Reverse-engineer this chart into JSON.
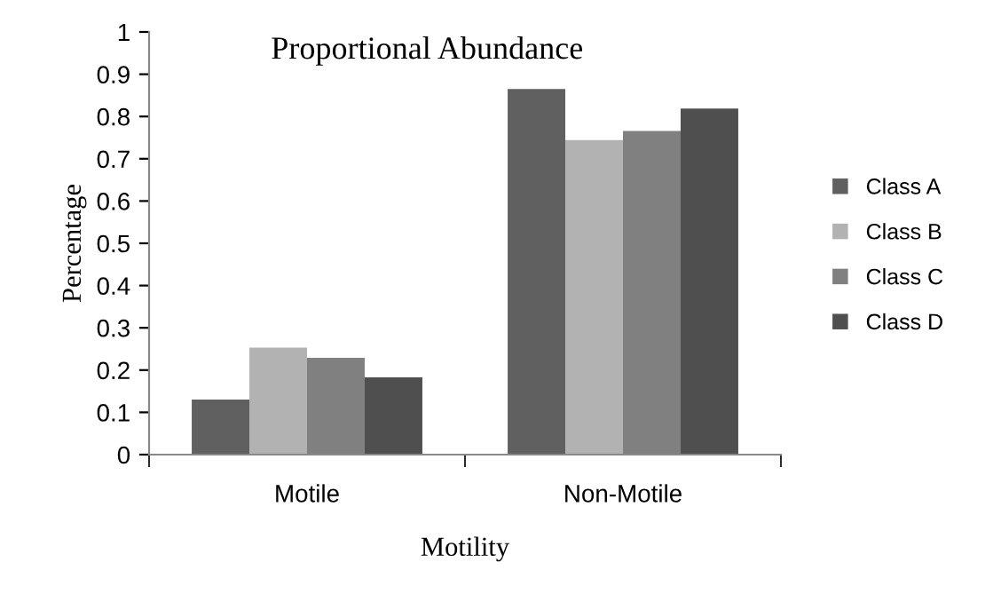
{
  "chart_data": {
    "type": "bar",
    "title": "Proportional Abundance",
    "xlabel": "Motility",
    "ylabel": "Percentage",
    "categories": [
      "Motile",
      "Non-Motile"
    ],
    "series": [
      {
        "name": "Class A",
        "color": "#606060",
        "values": [
          0.13,
          0.865
        ]
      },
      {
        "name": "Class B",
        "color": "#b2b2b2",
        "values": [
          0.253,
          0.744
        ]
      },
      {
        "name": "Class C",
        "color": "#808080",
        "values": [
          0.229,
          0.766
        ]
      },
      {
        "name": "Class D",
        "color": "#4f4f4f",
        "values": [
          0.183,
          0.819
        ]
      }
    ],
    "ylim": [
      0,
      1
    ],
    "yticks": [
      0,
      0.1,
      0.2,
      0.3,
      0.4,
      0.5,
      0.6,
      0.7,
      0.8,
      0.9,
      1
    ],
    "grid": false,
    "legend": "right"
  }
}
